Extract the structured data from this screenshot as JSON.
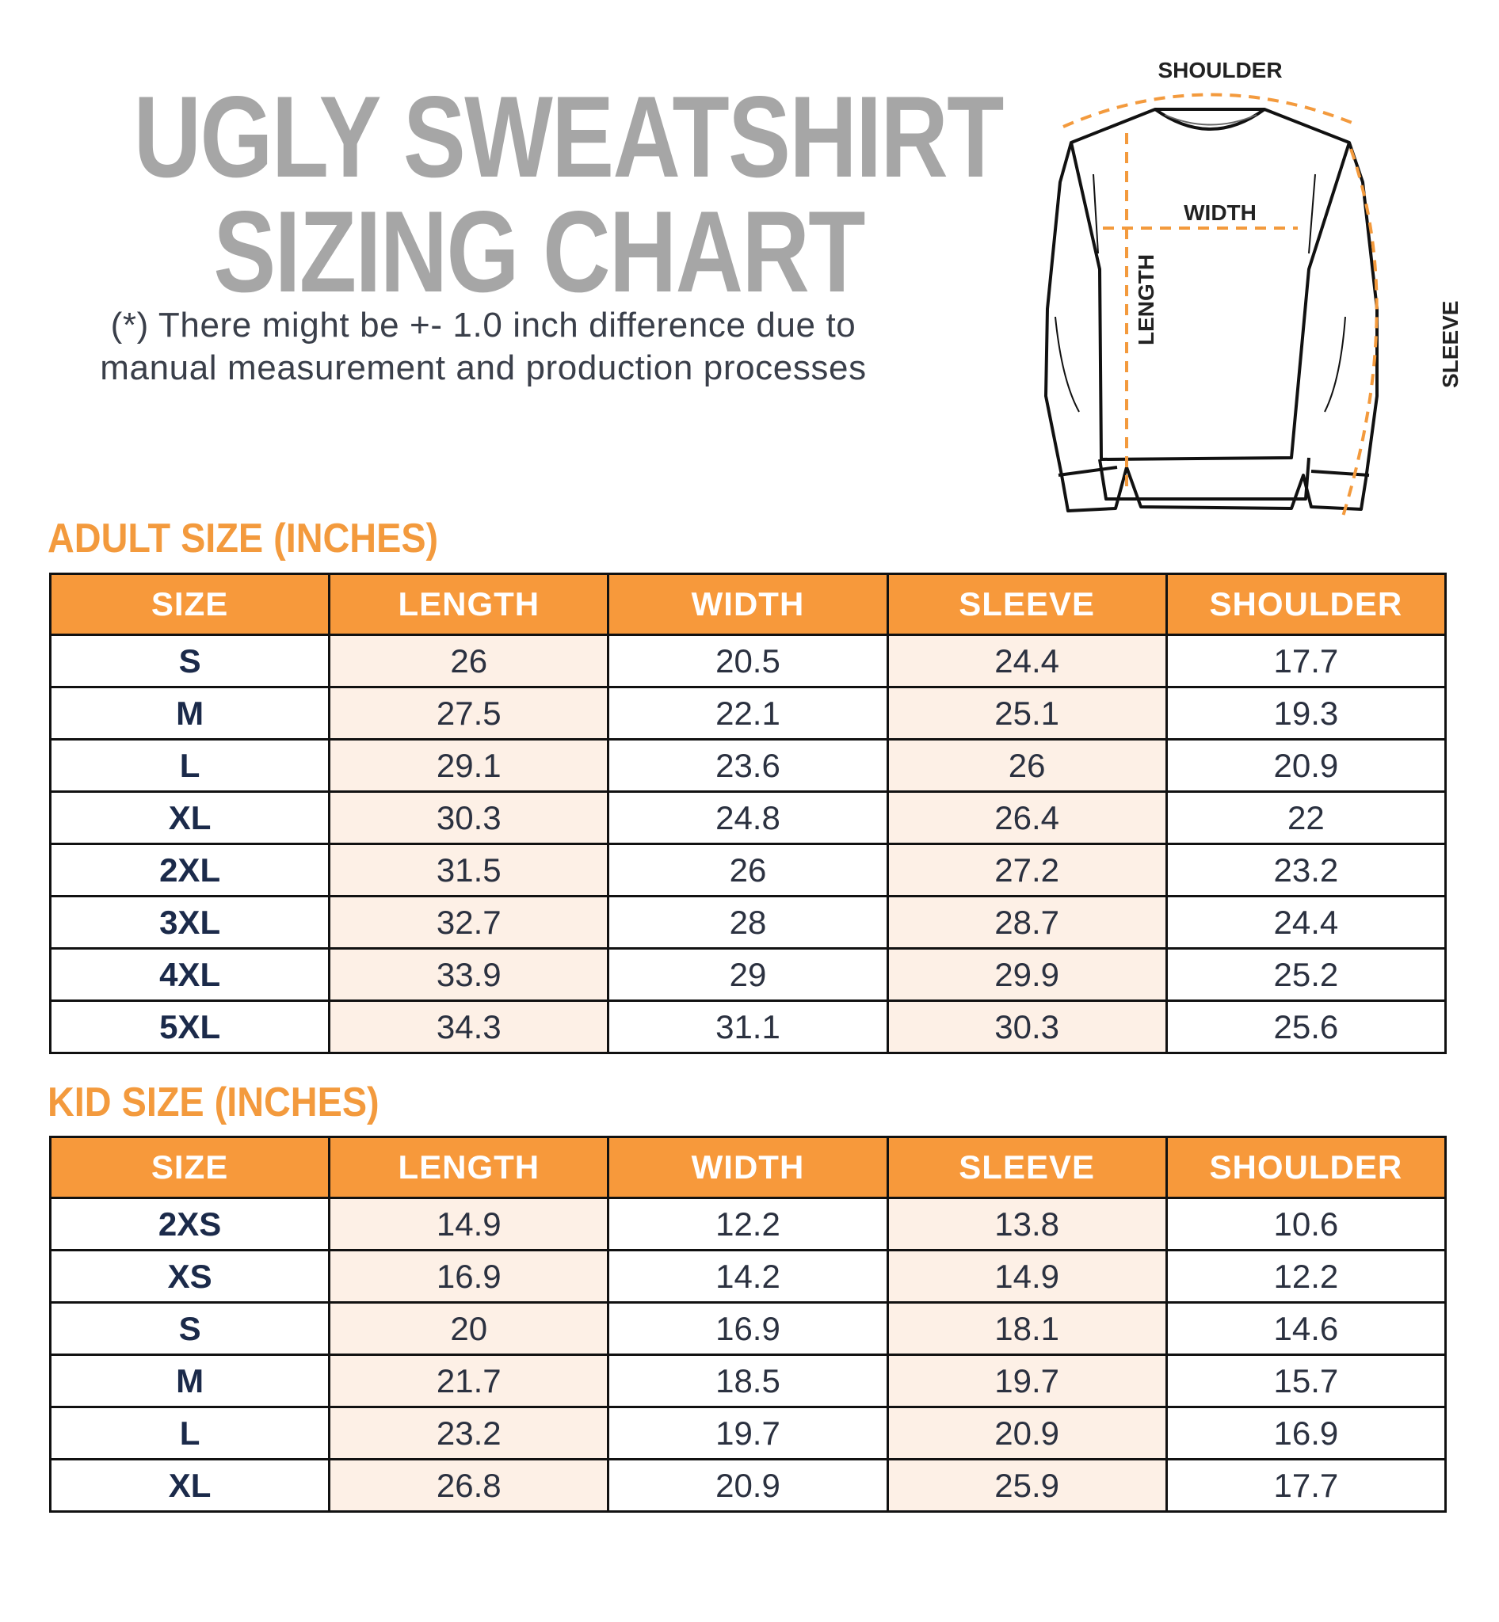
{
  "title": {
    "line1": "UGLY SWEATSHIRT",
    "line2": "SIZING CHART"
  },
  "note": {
    "line1": "(*) There might be +- 1.0 inch difference due to",
    "line2": "manual measurement and production processes"
  },
  "diagram": {
    "labels": {
      "shoulder": "SHOULDER",
      "width": "WIDTH",
      "length": "LENGTH",
      "sleeve": "SLEEVE"
    },
    "line_color": "#111111",
    "measure_color": "#f39a3d"
  },
  "colors": {
    "accent": "#f7993b",
    "title_gray": "#a6a6a6",
    "shade": "#fdf0e6"
  },
  "adult": {
    "title": "ADULT SIZE (INCHES)",
    "columns": [
      "SIZE",
      "LENGTH",
      "WIDTH",
      "SLEEVE",
      "SHOULDER"
    ],
    "rows": [
      [
        "S",
        "26",
        "20.5",
        "24.4",
        "17.7"
      ],
      [
        "M",
        "27.5",
        "22.1",
        "25.1",
        "19.3"
      ],
      [
        "L",
        "29.1",
        "23.6",
        "26",
        "20.9"
      ],
      [
        "XL",
        "30.3",
        "24.8",
        "26.4",
        "22"
      ],
      [
        "2XL",
        "31.5",
        "26",
        "27.2",
        "23.2"
      ],
      [
        "3XL",
        "32.7",
        "28",
        "28.7",
        "24.4"
      ],
      [
        "4XL",
        "33.9",
        "29",
        "29.9",
        "25.2"
      ],
      [
        "5XL",
        "34.3",
        "31.1",
        "30.3",
        "25.6"
      ]
    ]
  },
  "kid": {
    "title": "KID SIZE (INCHES)",
    "columns": [
      "SIZE",
      "LENGTH",
      "WIDTH",
      "SLEEVE",
      "SHOULDER"
    ],
    "rows": [
      [
        "2XS",
        "14.9",
        "12.2",
        "13.8",
        "10.6"
      ],
      [
        "XS",
        "16.9",
        "14.2",
        "14.9",
        "12.2"
      ],
      [
        "S",
        "20",
        "16.9",
        "18.1",
        "14.6"
      ],
      [
        "M",
        "21.7",
        "18.5",
        "19.7",
        "15.7"
      ],
      [
        "L",
        "23.2",
        "19.7",
        "20.9",
        "16.9"
      ],
      [
        "XL",
        "26.8",
        "20.9",
        "25.9",
        "17.7"
      ]
    ]
  }
}
